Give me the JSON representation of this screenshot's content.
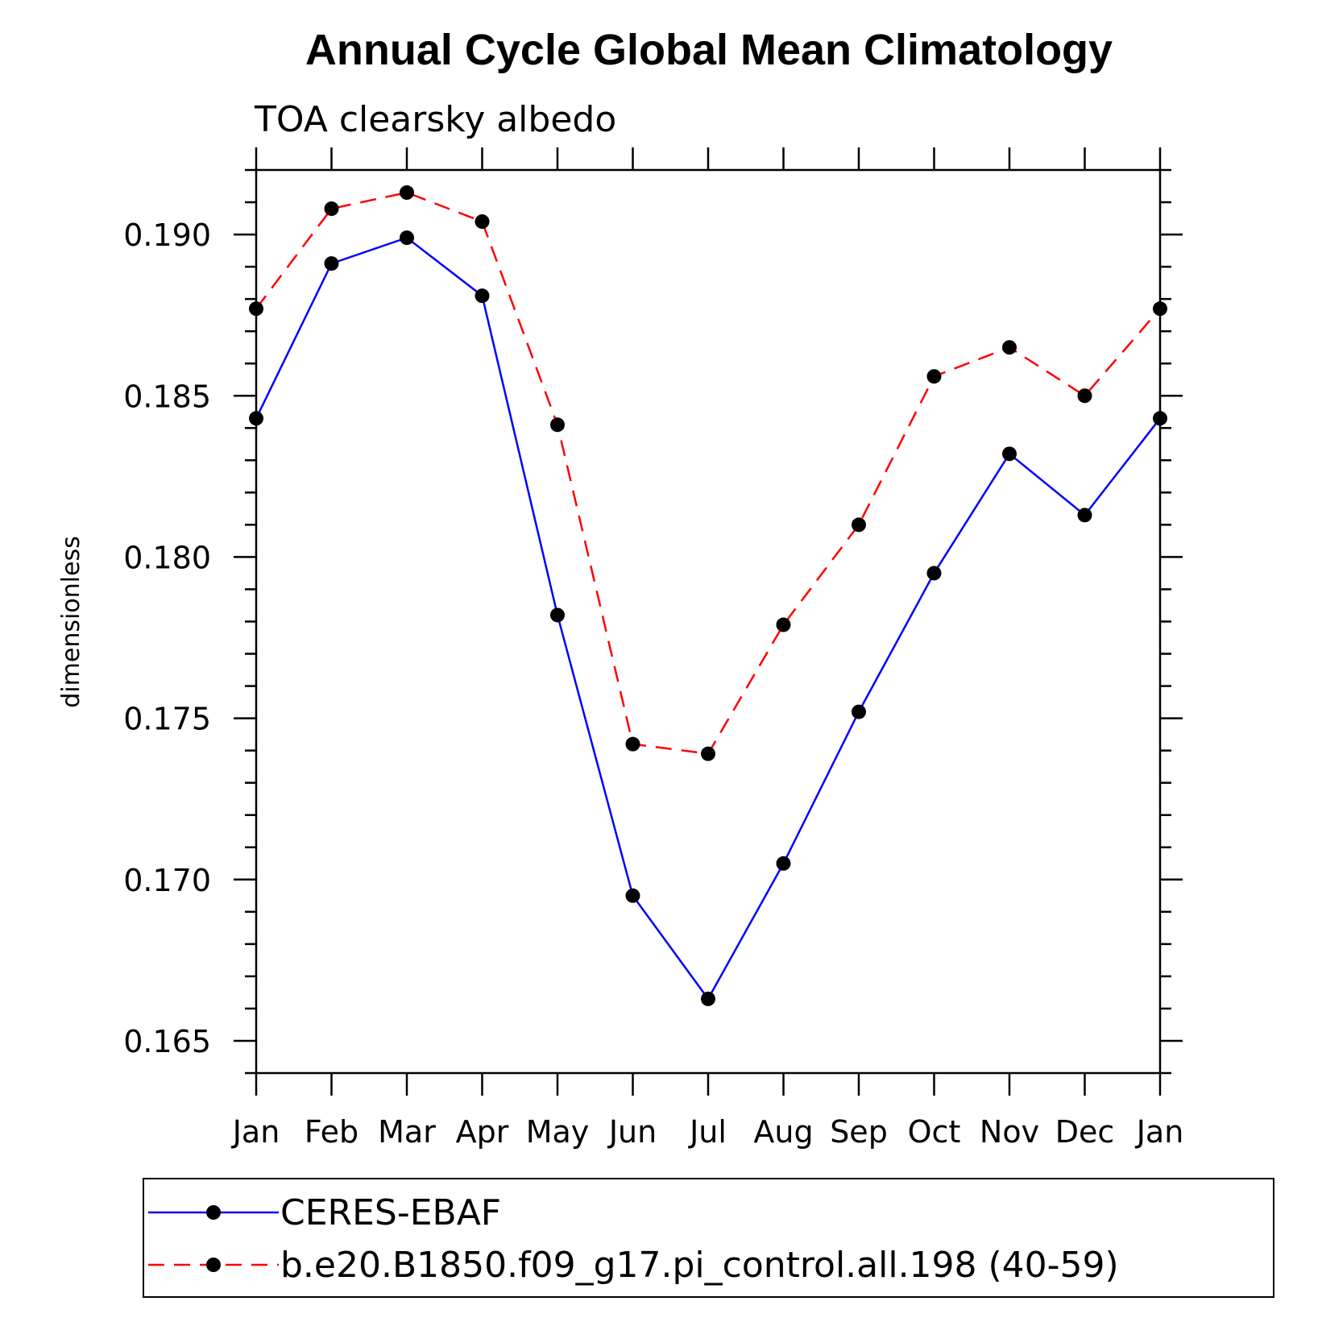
{
  "chart_data": {
    "type": "line",
    "title": "Annual Cycle Global Mean Climatology",
    "subtitle": "TOA clearsky albedo",
    "xlabel": "",
    "ylabel": "dimensionless",
    "categories": [
      "Jan",
      "Feb",
      "Mar",
      "Apr",
      "May",
      "Jun",
      "Jul",
      "Aug",
      "Sep",
      "Oct",
      "Nov",
      "Dec",
      "Jan"
    ],
    "ylim": [
      0.164,
      0.192
    ],
    "yticks": [
      "0.165",
      "0.170",
      "0.175",
      "0.180",
      "0.185",
      "0.190"
    ],
    "grid": false,
    "legend_position": "bottom",
    "series": [
      {
        "name": "CERES-EBAF",
        "color": "#0000ff",
        "line_style": "solid",
        "marker": "filled-circle",
        "values": [
          0.1843,
          0.1891,
          0.1899,
          0.1881,
          0.1782,
          0.1695,
          0.1663,
          0.1705,
          0.1752,
          0.1795,
          0.1832,
          0.1813,
          0.1843
        ]
      },
      {
        "name": "b.e20.B1850.f09_g17.pi_control.all.198 (40-59)",
        "color": "#ff0000",
        "line_style": "dashed",
        "marker": "filled-circle",
        "values": [
          0.1877,
          0.1908,
          0.1913,
          0.1904,
          0.1841,
          0.1742,
          0.1739,
          0.1779,
          0.181,
          0.1856,
          0.1865,
          0.185,
          0.1877
        ]
      }
    ]
  }
}
